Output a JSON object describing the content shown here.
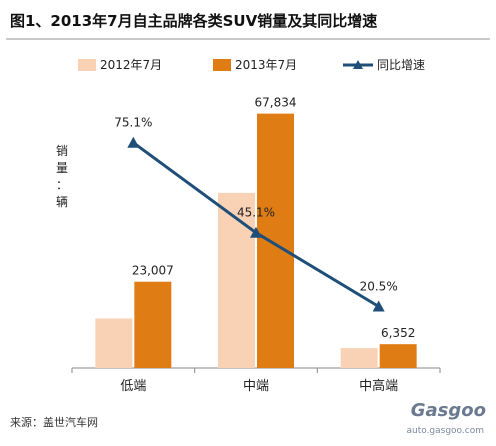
{
  "header": {
    "title": "图1、2013年7月自主品牌各类SUV销量及其同比增速"
  },
  "legend": {
    "items": [
      {
        "label": "2012年7月",
        "color": "#f9d2b6",
        "kind": "bar"
      },
      {
        "label": "2013年7月",
        "color": "#e07c14",
        "kind": "bar"
      },
      {
        "label": "同比增速",
        "color": "#1f4e79",
        "kind": "line"
      }
    ]
  },
  "chart_data": {
    "type": "bar",
    "categories": [
      "低端",
      "中端",
      "中高端"
    ],
    "ylabel": "销量：辆",
    "series": [
      {
        "name": "2012年7月",
        "values": [
          13200,
          46700,
          5300
        ],
        "color": "#f9d2b6"
      },
      {
        "name": "2013年7月",
        "values": [
          23007,
          67834,
          6352
        ],
        "color": "#e07c14",
        "labels": [
          "23,007",
          "67,834",
          "6,352"
        ]
      }
    ],
    "growth": {
      "name": "同比增速",
      "values": [
        75.1,
        45.1,
        20.5
      ],
      "labels": [
        "75.1%",
        "45.1%",
        "20.5%"
      ],
      "color": "#1f4e79"
    },
    "ylim": [
      0,
      72000
    ],
    "growth_ylim": [
      0,
      90
    ],
    "grid": false,
    "legend_position": "top"
  },
  "footer": {
    "source": "来源：盖世汽车网",
    "logo_brand": "Gasgoo",
    "logo_url": "auto.gasgoo.com"
  }
}
